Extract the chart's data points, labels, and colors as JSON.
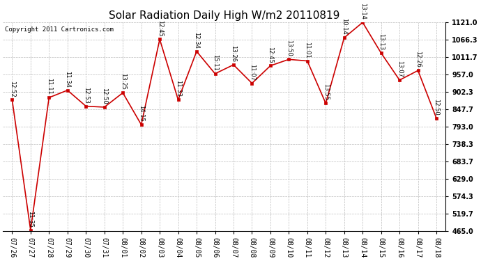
{
  "title": "Solar Radiation Daily High W/m2 20110819",
  "copyright": "Copyright 2011 Cartronics.com",
  "x_labels": [
    "07/26",
    "07/27",
    "07/28",
    "07/29",
    "07/30",
    "07/31",
    "08/01",
    "08/02",
    "08/03",
    "08/04",
    "08/05",
    "08/06",
    "08/07",
    "08/08",
    "08/09",
    "08/10",
    "08/11",
    "08/12",
    "08/13",
    "08/14",
    "08/15",
    "08/16",
    "08/17",
    "08/18"
  ],
  "y_values": [
    878,
    469,
    885,
    908,
    858,
    855,
    900,
    800,
    1068,
    878,
    1030,
    960,
    988,
    930,
    985,
    1005,
    1000,
    867,
    1073,
    1121,
    1025,
    940,
    970,
    820
  ],
  "time_labels": [
    "12:52",
    "11:35",
    "11:11",
    "11:34",
    "12:53",
    "12:50",
    "13:25",
    "14:15",
    "12:45",
    "11:33",
    "12:34",
    "15:11",
    "13:26",
    "11:07",
    "12:45",
    "13:50",
    "11:01",
    "13:55",
    "10:14",
    "13:14",
    "13:13",
    "13:07",
    "12:26",
    "12:50"
  ],
  "ylim_min": 465.0,
  "ylim_max": 1121.0,
  "ytick_values": [
    465.0,
    519.7,
    574.3,
    629.0,
    683.7,
    738.3,
    793.0,
    847.7,
    902.3,
    957.0,
    1011.7,
    1066.3,
    1121.0
  ],
  "ytick_labels": [
    "465.0",
    "519.7",
    "574.3",
    "629.0",
    "683.7",
    "738.3",
    "793.0",
    "847.7",
    "902.3",
    "957.0",
    "1011.7",
    "1066.3",
    "1121.0"
  ],
  "line_color": "#cc0000",
  "marker_color": "#cc0000",
  "bg_color": "#ffffff",
  "grid_color": "#bbbbbb",
  "title_fontsize": 11,
  "copyright_fontsize": 6.5,
  "tick_fontsize": 7,
  "annot_fontsize": 6
}
